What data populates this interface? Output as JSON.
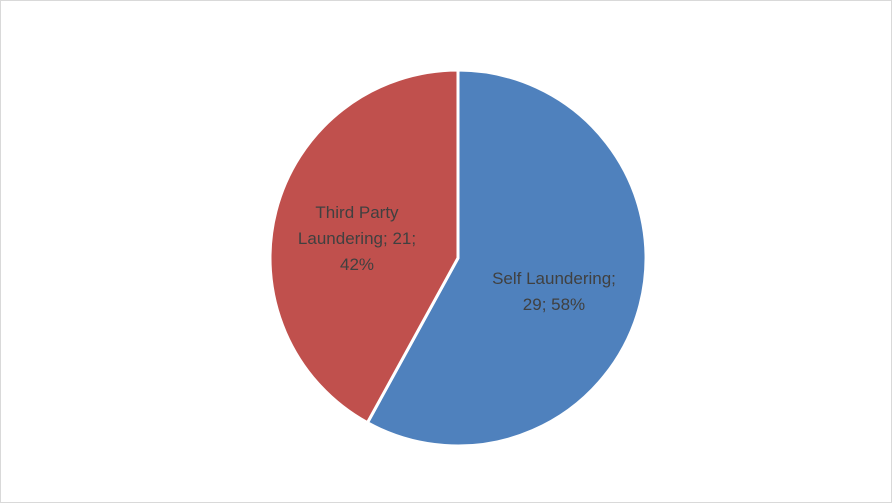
{
  "chart_data": {
    "type": "pie",
    "title": "",
    "categories": [
      "Self Laundering",
      "Third Party Laundering"
    ],
    "values": [
      29,
      21
    ],
    "percentages": [
      "58%",
      "42%"
    ],
    "colors": [
      "#4F81BD",
      "#C0504D"
    ],
    "data_labels": [
      [
        "Self Laundering;",
        "29; 58%"
      ],
      [
        "Third Party",
        "Laundering; 21;",
        "42%"
      ]
    ],
    "legend": "none",
    "start_angle_degrees": 0,
    "direction": "clockwise"
  }
}
